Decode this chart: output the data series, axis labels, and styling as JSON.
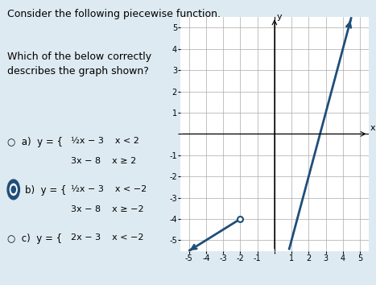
{
  "title_text": "Consider the following piecewise function.",
  "question_text": "Which of the below correctly\ndescribes the graph shown?",
  "xlim": [
    -5.5,
    5.5
  ],
  "ylim": [
    -5.5,
    5.5
  ],
  "xticks": [
    -5,
    -4,
    -3,
    -2,
    -1,
    0,
    1,
    2,
    3,
    4,
    5
  ],
  "yticks": [
    -5,
    -4,
    -3,
    -2,
    -1,
    0,
    1,
    2,
    3,
    4,
    5
  ],
  "line_color": "#1f4e79",
  "line_width": 2.0,
  "breakpoint_x": -2,
  "piece1": {
    "slope": 0.5,
    "intercept": -3,
    "x_end": -2
  },
  "piece2": {
    "slope": 3,
    "intercept": -8,
    "x_start": -2
  },
  "open_circle": false,
  "options": [
    {
      "label": "a)",
      "formula": "y = {",
      "line1": "½x − 3    x < 2",
      "line2": "3x − 8    x ≥ 2",
      "selected": false
    },
    {
      "label": "b)",
      "formula": "y = {",
      "line1": "½x − 3    x < −2",
      "line2": "3x − 8    x ≥ −2",
      "selected": true
    },
    {
      "label": "c)",
      "formula": "y = {",
      "line1": "2x − 3    x < −2",
      "line2": "",
      "selected": false
    }
  ],
  "background_color": "#deeaf1",
  "graph_bg": "#ffffff",
  "text_color": "#000000",
  "grid_color": "#aaaaaa",
  "axis_color": "#000000",
  "font_size_title": 9,
  "font_size_options": 9
}
